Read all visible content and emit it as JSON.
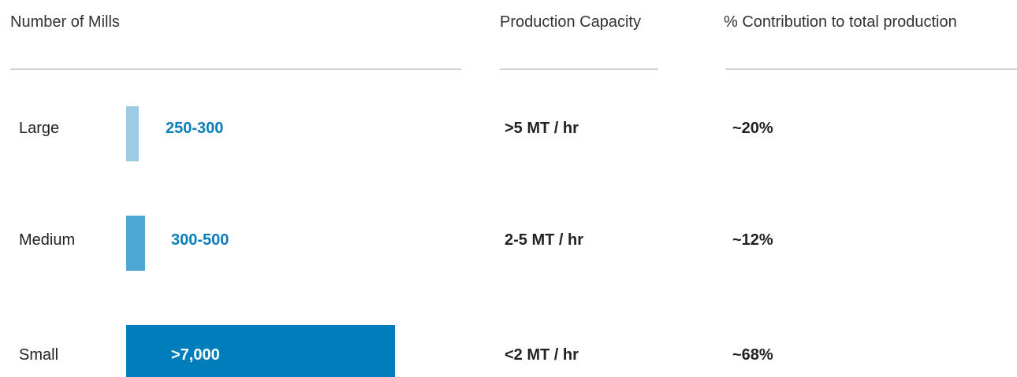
{
  "headers": {
    "mills": "Number of Mills",
    "capacity": "Production Capacity",
    "contribution": "% Contribution to total production"
  },
  "colors": {
    "large": "#9ccbe3",
    "medium": "#4ea6d3",
    "small": "#007dbb",
    "label_blue": "#0a7dba"
  },
  "rows": [
    {
      "category": "Large",
      "mills": "250-300",
      "capacity": ">5 MT / hr",
      "contribution": "~20%"
    },
    {
      "category": "Medium",
      "mills": "300-500",
      "capacity": "2-5 MT / hr",
      "contribution": "~12%"
    },
    {
      "category": "Small",
      "mills": ">7,000",
      "capacity": "<2 MT / hr",
      "contribution": "~68%"
    }
  ],
  "chart_data": {
    "type": "bar",
    "categories": [
      "Large",
      "Medium",
      "Small"
    ],
    "values": [
      275,
      400,
      7000
    ],
    "value_labels": [
      "250-300",
      "300-500",
      ">7,000"
    ]
  }
}
